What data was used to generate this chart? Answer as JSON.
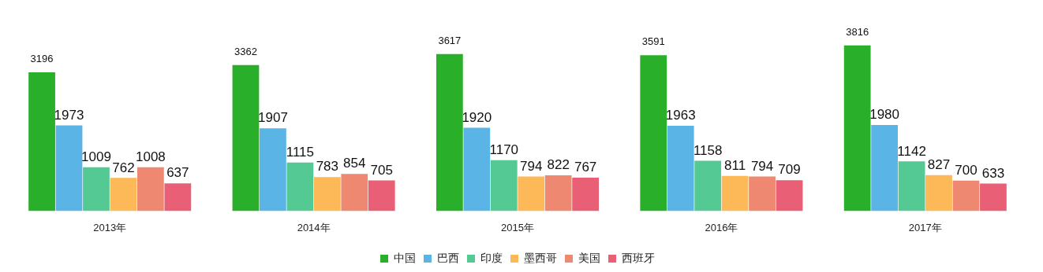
{
  "chart_data": {
    "type": "bar",
    "categories": [
      "2013年",
      "2014年",
      "2015年",
      "2016年",
      "2017年"
    ],
    "series": [
      {
        "name": "中国",
        "color": "#2aaf2a",
        "values": [
          3196,
          3362,
          3617,
          3591,
          3816
        ]
      },
      {
        "name": "巴西",
        "color": "#5ab4e5",
        "values": [
          1973,
          1907,
          1920,
          1963,
          1980
        ]
      },
      {
        "name": "印度",
        "color": "#55c993",
        "values": [
          1009,
          1115,
          1170,
          1158,
          1142
        ]
      },
      {
        "name": "墨西哥",
        "color": "#fdb858",
        "values": [
          762,
          783,
          794,
          811,
          827
        ]
      },
      {
        "name": "美国",
        "color": "#ee8870",
        "values": [
          1008,
          854,
          822,
          794,
          700
        ]
      },
      {
        "name": "西班牙",
        "color": "#e95f75",
        "values": [
          637,
          705,
          767,
          709,
          633
        ]
      }
    ],
    "data_labels": true,
    "legend": "bottom",
    "grid": false,
    "tick_labels": "x"
  }
}
